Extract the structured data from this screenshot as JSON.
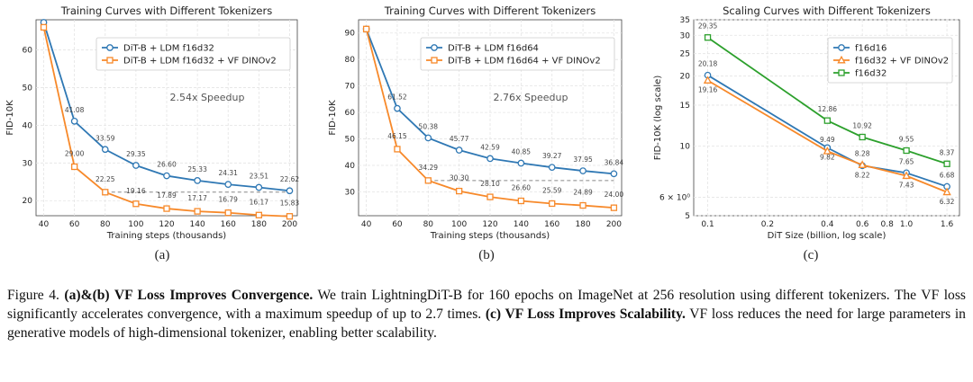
{
  "caption": {
    "figure_label": "Figure 4.",
    "bold_1": "(a)&(b) VF Loss Improves Convergence.",
    "text_1": "We train LightningDiT-B for 160 epochs on ImageNet at 256 resolution using different tokenizers. The VF loss significantly accelerates convergence, with a maximum speedup of up to 2.7 times.",
    "bold_2": "(c) VF Loss Improves Scalability.",
    "text_2": "VF loss reduces the need for large parameters in generative models of high-dimensional tokenizer, enabling better scalability."
  },
  "chart_data": [
    {
      "id": "a",
      "sub_label": "(a)",
      "type": "line",
      "title": "Training Curves with Different Tokenizers",
      "xlabel": "Training steps (thousands)",
      "ylabel": "FID-10K",
      "x": [
        40,
        60,
        80,
        100,
        120,
        140,
        160,
        180,
        200
      ],
      "xticks": [
        "40",
        "60",
        "80",
        "100",
        "120",
        "140",
        "160",
        "180",
        "200"
      ],
      "yticks": [
        20,
        30,
        40,
        50,
        60
      ],
      "xlim": [
        35,
        205
      ],
      "ylim": [
        16,
        68
      ],
      "grid": true,
      "legend": "top-right",
      "annotation": "2.54x Speedup",
      "colors": {
        "blue": "#2f78b4",
        "orange": "#f7892a",
        "green": "#2ca02c"
      },
      "series": [
        {
          "name": "DiT-B + LDM f16d32",
          "color": "#2f78b4",
          "marker": "circle",
          "values": [
            67.3,
            41.08,
            33.59,
            29.35,
            26.6,
            25.33,
            24.31,
            23.51,
            22.62
          ],
          "labels": [
            "",
            "41.08",
            "33.59",
            "29.35",
            "26.60",
            "25.33",
            "24.31",
            "23.51",
            "22.62"
          ]
        },
        {
          "name": "DiT-B + LDM f16d32 + VF DINOv2",
          "color": "#f7892a",
          "marker": "square",
          "values": [
            66.0,
            29.0,
            22.25,
            19.16,
            17.89,
            17.17,
            16.79,
            16.17,
            15.83
          ],
          "labels": [
            "",
            "29.00",
            "22.25",
            "19.16",
            "17.89",
            "17.17",
            "16.79",
            "16.17",
            "15.83"
          ]
        }
      ]
    },
    {
      "id": "b",
      "sub_label": "(b)",
      "type": "line",
      "title": "Training Curves with Different Tokenizers",
      "xlabel": "Training steps (thousands)",
      "ylabel": "FID-10K",
      "x": [
        40,
        60,
        80,
        100,
        120,
        140,
        160,
        180,
        200
      ],
      "xticks": [
        "40",
        "60",
        "80",
        "100",
        "120",
        "140",
        "160",
        "180",
        "200"
      ],
      "yticks": [
        30,
        40,
        50,
        60,
        70,
        80,
        90
      ],
      "xlim": [
        35,
        205
      ],
      "ylim": [
        21,
        95
      ],
      "grid": true,
      "legend": "top-right",
      "annotation": "2.76x Speedup",
      "colors": {
        "blue": "#2f78b4",
        "orange": "#f7892a",
        "green": "#2ca02c"
      },
      "series": [
        {
          "name": "DiT-B + LDM f16d64",
          "color": "#2f78b4",
          "marker": "circle",
          "values": [
            91.5,
            61.52,
            50.38,
            45.77,
            42.59,
            40.85,
            39.27,
            37.95,
            36.84
          ],
          "labels": [
            "",
            "61.52",
            "50.38",
            "45.77",
            "42.59",
            "40.85",
            "39.27",
            "37.95",
            "36.84"
          ]
        },
        {
          "name": "DiT-B + LDM f16d64 + VF DINOv2",
          "color": "#f7892a",
          "marker": "square",
          "values": [
            91.5,
            46.15,
            34.29,
            30.3,
            28.1,
            26.6,
            25.59,
            24.89,
            24.0
          ],
          "labels": [
            "",
            "46.15",
            "34.29",
            "30.30",
            "28.10",
            "26.60",
            "25.59",
            "24.89",
            "24.00"
          ]
        }
      ]
    },
    {
      "id": "c",
      "sub_label": "(c)",
      "type": "line",
      "title": "Scaling Curves with Different Tokenizers",
      "xlabel": "DiT Size (billion, log scale)",
      "ylabel": "FID-10K (log scale)",
      "xscale": "log",
      "yscale": "log",
      "x": [
        0.1,
        0.4,
        0.6,
        1.0,
        1.6
      ],
      "xticks": [
        0.1,
        0.2,
        0.4,
        0.6,
        0.8,
        1.0,
        1.6
      ],
      "xtick_labels": [
        "0.1",
        "0.2",
        "0.4",
        "0.6",
        "0.8",
        "1.0",
        "1.6"
      ],
      "yticks": [
        5,
        6,
        10,
        15,
        20,
        25,
        30,
        35
      ],
      "ytick_labels": [
        "5",
        "6 × 10⁰",
        "10",
        "15",
        "20",
        "25",
        "30",
        "35"
      ],
      "xlim": [
        0.085,
        1.85
      ],
      "ylim": [
        5,
        35
      ],
      "grid": true,
      "legend": "top-right",
      "series": [
        {
          "name": "f16d16",
          "color": "#2f78b4",
          "marker": "circle",
          "values": [
            20.18,
            9.82,
            8.22,
            7.65,
            6.68
          ],
          "labels": [
            "20.18",
            "9.82",
            "8.22",
            "7.65",
            "6.68"
          ]
        },
        {
          "name": "f16d32 + VF DINOv2",
          "color": "#f7892a",
          "marker": "triangle",
          "values": [
            19.16,
            9.49,
            8.28,
            7.43,
            6.32
          ],
          "labels": [
            "19.16",
            "9.49",
            "8.28",
            "7.43",
            "6.32"
          ]
        },
        {
          "name": "f16d32",
          "color": "#2ca02c",
          "marker": "square",
          "values": [
            29.35,
            12.86,
            10.92,
            9.55,
            8.37
          ],
          "labels": [
            "29.35",
            "12.86",
            "10.92",
            "9.55",
            "8.37"
          ]
        }
      ]
    }
  ]
}
